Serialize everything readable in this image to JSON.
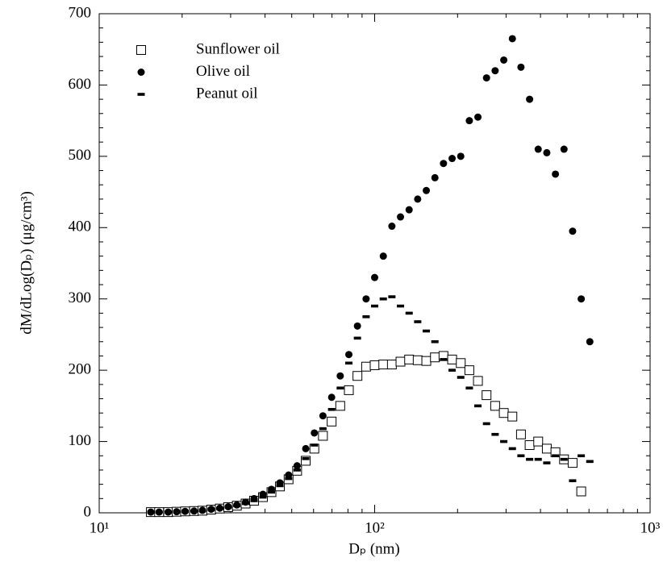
{
  "chart_data": {
    "type": "scatter",
    "x_label": "Dₚ (nm)",
    "y_label": "dM/dLog(Dₚ) (μg/cm³)",
    "xscale": "log",
    "xlim": [
      10,
      1000
    ],
    "xticks": [
      {
        "value": 10,
        "label": "10¹"
      },
      {
        "value": 100,
        "label": "10²"
      },
      {
        "value": 1000,
        "label": "10³"
      }
    ],
    "ylim": [
      0,
      700
    ],
    "yticks": [
      0,
      100,
      200,
      300,
      400,
      500,
      600,
      700
    ],
    "legend": "upper left",
    "x": [
      15.4,
      16.5,
      17.8,
      19.1,
      20.5,
      22.1,
      23.7,
      25.5,
      27.4,
      29.4,
      31.6,
      34.0,
      36.5,
      39.3,
      42.2,
      45.3,
      48.7,
      52.3,
      56.2,
      60.4,
      64.9,
      69.8,
      75.0,
      80.6,
      86.6,
      93.1,
      100,
      107.5,
      115.5,
      124.1,
      133.4,
      143.3,
      154.0,
      165.5,
      177.8,
      191.1,
      205.4,
      220.7,
      237.1,
      254.8,
      273.8,
      294.3,
      316.2,
      339.8,
      365.2,
      392.4,
      421.7,
      453.2,
      487.0,
      523.3,
      562.3,
      604.3
    ],
    "series": [
      {
        "name": "Sunflower oil",
        "marker": "square",
        "color": "#000000",
        "values": [
          1,
          1,
          1,
          1.5,
          2,
          2.5,
          3,
          4.5,
          6,
          8,
          10,
          13,
          17,
          22,
          29,
          37,
          47,
          59,
          73,
          90,
          108,
          128,
          150,
          172,
          192,
          205,
          207,
          208,
          208,
          212,
          215,
          214,
          213,
          218,
          220,
          215,
          210,
          200,
          185,
          165,
          150,
          140,
          135,
          110,
          95,
          100,
          90,
          85,
          75,
          70,
          30,
          null
        ]
      },
      {
        "name": "Olive oil",
        "marker": "circle",
        "color": "#000000",
        "values": [
          1,
          1,
          1,
          1.5,
          2,
          2.5,
          3.5,
          5,
          6.5,
          8.5,
          11,
          15,
          20,
          26,
          33,
          42,
          53,
          66,
          90,
          112,
          136,
          162,
          192,
          222,
          262,
          300,
          330,
          360,
          402,
          415,
          425,
          440,
          452,
          470,
          490,
          497,
          500,
          550,
          555,
          610,
          620,
          635,
          665,
          625,
          580,
          510,
          505,
          475,
          510,
          395,
          300,
          240
        ]
      },
      {
        "name": "Peanut oil",
        "marker": "dash",
        "color": "#000000",
        "values": [
          1,
          1,
          1,
          1.5,
          2,
          2.5,
          3,
          4.5,
          6,
          8,
          10,
          13,
          17,
          22,
          29,
          38,
          48,
          60,
          76,
          95,
          118,
          145,
          175,
          210,
          245,
          275,
          290,
          300,
          303,
          290,
          280,
          268,
          255,
          240,
          215,
          200,
          190,
          175,
          150,
          125,
          110,
          100,
          90,
          80,
          75,
          75,
          70,
          80,
          75,
          45,
          80,
          72
        ]
      }
    ]
  }
}
